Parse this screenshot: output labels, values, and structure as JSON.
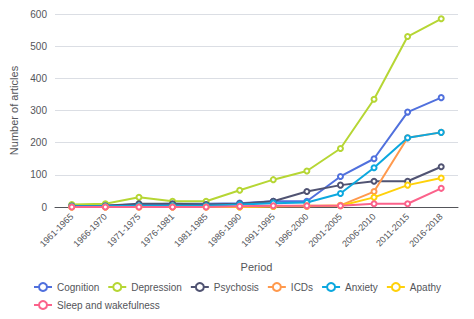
{
  "chart_data": {
    "type": "line",
    "xlabel": "Period",
    "ylabel": "Number of articles",
    "categories": [
      "1961-1965",
      "1966-1970",
      "1971-1975",
      "1976-1981",
      "1981-1985",
      "1986-1990",
      "1991-1995",
      "1996-2000",
      "2001-2005",
      "2006-2010",
      "2011-2015",
      "2016-2018"
    ],
    "series": [
      {
        "name": "Cognition",
        "values": [
          5,
          5,
          8,
          10,
          10,
          12,
          18,
          18,
          95,
          150,
          295,
          340
        ]
      },
      {
        "name": "Depression",
        "values": [
          8,
          10,
          30,
          18,
          18,
          52,
          85,
          112,
          182,
          335,
          530,
          585
        ]
      },
      {
        "name": "Psychosis",
        "values": [
          3,
          4,
          10,
          10,
          8,
          10,
          18,
          48,
          68,
          80,
          80,
          125
        ]
      },
      {
        "name": "ICDs",
        "values": [
          0,
          0,
          0,
          0,
          0,
          0,
          2,
          2,
          5,
          48,
          215,
          232
        ]
      },
      {
        "name": "Anxiety",
        "values": [
          2,
          2,
          4,
          4,
          4,
          8,
          12,
          14,
          42,
          122,
          215,
          232
        ]
      },
      {
        "name": "Apathy",
        "values": [
          0,
          0,
          0,
          0,
          0,
          0,
          2,
          4,
          4,
          30,
          68,
          90
        ]
      },
      {
        "name": "Sleep and wakefulness",
        "values": [
          0,
          0,
          0,
          0,
          0,
          2,
          4,
          4,
          4,
          10,
          10,
          58
        ]
      }
    ],
    "ylim": [
      0,
      600
    ],
    "yticks": [
      0,
      100,
      200,
      300,
      400,
      500,
      600
    ],
    "grid": true,
    "legend": "bottom"
  }
}
